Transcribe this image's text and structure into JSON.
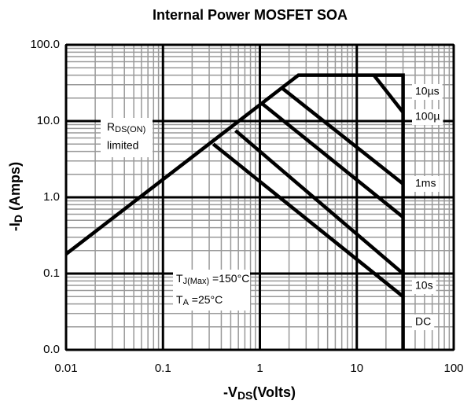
{
  "chart_data": {
    "type": "line",
    "title": "Internal Power MOSFET SOA",
    "y_label": [
      "-I",
      "D",
      " (Amps)"
    ],
    "x_label": [
      "-V",
      "DS",
      "(Volts)"
    ],
    "log_x": true,
    "log_y": true,
    "grid": true,
    "minor_grid": true,
    "color": "#000000",
    "xlim": [
      0.01,
      100
    ],
    "xticks": [
      0.01,
      0.1,
      1,
      10,
      100
    ],
    "ylim": [
      0.01,
      100
    ],
    "yticks": [
      {
        "value": 0.01,
        "label": "0.0"
      },
      {
        "value": 0.1,
        "label": "0.1"
      },
      {
        "value": 1,
        "label": "1.0"
      },
      {
        "value": 10,
        "label": "10.0"
      },
      {
        "value": 100,
        "label": "100.0"
      }
    ],
    "series": [
      {
        "x": [
          0.01,
          2.5,
          30,
          30
        ],
        "values": [
          0.18,
          40,
          40,
          0.01
        ]
      },
      {
        "name": "10µs",
        "x": [
          15,
          30
        ],
        "values": [
          40,
          13
        ]
      },
      {
        "name": "100µ",
        "x": [
          1.7,
          30
        ],
        "values": [
          27,
          1.5
        ]
      },
      {
        "name": "1ms",
        "x": [
          1.05,
          30
        ],
        "values": [
          17,
          0.55
        ]
      },
      {
        "name": "10s",
        "x": [
          0.56,
          30
        ],
        "values": [
          7.5,
          0.1
        ]
      },
      {
        "name": "DC",
        "x": [
          0.33,
          30
        ],
        "values": [
          5,
          0.05
        ]
      }
    ],
    "annotations": {
      "rds": [
        "R",
        "DS(ON)",
        "limited"
      ],
      "tj": [
        "T",
        "J(Max)",
        " =150°C"
      ],
      "ta": [
        "T",
        "A",
        " =25°C"
      ]
    }
  }
}
